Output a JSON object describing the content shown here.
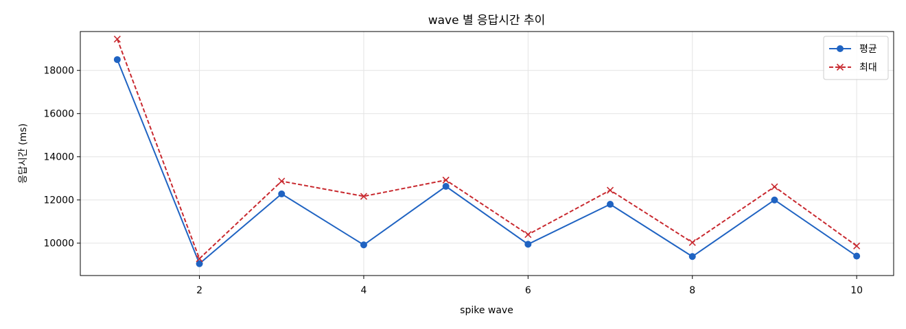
{
  "chart_data": {
    "type": "line",
    "title": "wave 별 응답시간 추이",
    "xlabel": "spike wave",
    "ylabel": "응답시간 (ms)",
    "x": [
      1,
      2,
      3,
      4,
      5,
      6,
      7,
      8,
      9,
      10
    ],
    "xlim": [
      0.55,
      10.45
    ],
    "ylim": [
      8500,
      19800
    ],
    "xticks": [
      2,
      4,
      6,
      8,
      10
    ],
    "yticks": [
      10000,
      12000,
      14000,
      16000,
      18000
    ],
    "grid": true,
    "legend_position": "top-right",
    "series": [
      {
        "name": "평균",
        "values": [
          18500,
          9050,
          12280,
          9920,
          12630,
          9950,
          11800,
          9380,
          12000,
          9400
        ],
        "color": "#1f63c2",
        "line_style": "solid",
        "marker": "circle"
      },
      {
        "name": "최대",
        "values": [
          19450,
          9280,
          12870,
          12170,
          12920,
          10400,
          12450,
          10030,
          12610,
          9870
        ],
        "color": "#c8282e",
        "line_style": "dashed",
        "marker": "x"
      }
    ]
  }
}
